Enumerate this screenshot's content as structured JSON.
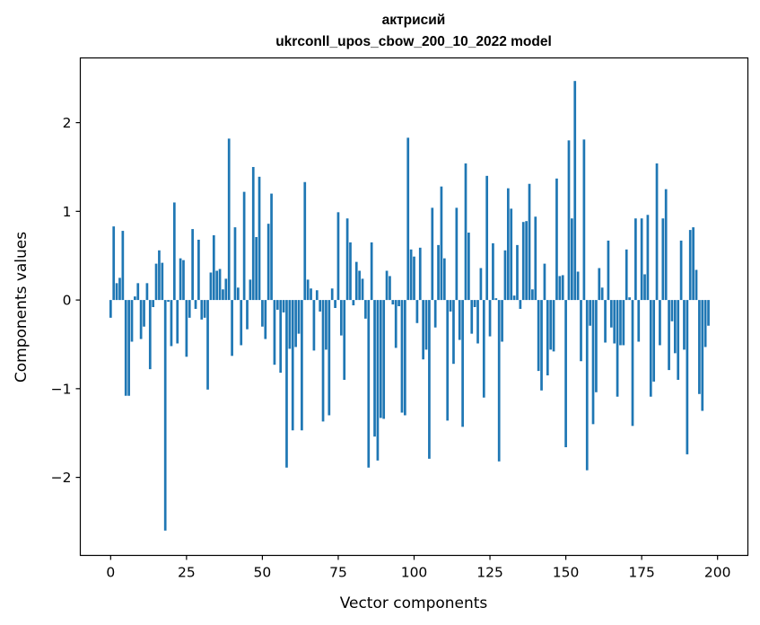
{
  "chart_data": {
    "type": "bar",
    "title_line1": "актрисий",
    "title_line2": "ukrconll_upos_cbow_200_10_2022 model",
    "xlabel": "Vector components",
    "ylabel": "Components values",
    "xlim": [
      -10,
      210
    ],
    "ylim": [
      -2.88,
      2.73
    ],
    "xticks": [
      0,
      25,
      50,
      75,
      100,
      125,
      150,
      175,
      200
    ],
    "xtick_labels": [
      "0",
      "25",
      "50",
      "75",
      "100",
      "125",
      "150",
      "175",
      "200"
    ],
    "yticks": [
      -2,
      -1,
      0,
      1,
      2
    ],
    "ytick_labels": [
      "−2",
      "−1",
      "0",
      "1",
      "2"
    ],
    "bar_color": "#1f77b4",
    "x_start": 0,
    "values": [
      -0.2,
      0.83,
      0.19,
      0.25,
      0.78,
      -1.08,
      -1.08,
      -0.47,
      0.04,
      0.19,
      -0.44,
      -0.3,
      0.19,
      -0.78,
      -0.08,
      0.41,
      0.56,
      0.42,
      -2.6,
      -0.02,
      -0.52,
      1.1,
      -0.49,
      0.47,
      0.45,
      -0.64,
      -0.2,
      0.8,
      -0.1,
      0.68,
      -0.22,
      -0.2,
      -1.01,
      0.31,
      0.73,
      0.33,
      0.35,
      0.12,
      0.24,
      1.82,
      -0.63,
      0.82,
      0.14,
      -0.51,
      1.22,
      -0.33,
      0.23,
      1.5,
      0.71,
      1.39,
      -0.3,
      -0.44,
      0.86,
      1.2,
      -0.73,
      -0.11,
      -0.82,
      -0.14,
      -1.89,
      -0.55,
      -1.47,
      -0.53,
      -0.38,
      -1.47,
      1.33,
      0.23,
      0.13,
      -0.57,
      0.11,
      -0.13,
      -1.37,
      -0.56,
      -1.3,
      0.13,
      -0.09,
      0.99,
      -0.4,
      -0.9,
      0.92,
      0.65,
      -0.06,
      0.43,
      0.33,
      0.24,
      -0.21,
      -1.89,
      0.65,
      -1.54,
      -1.81,
      -1.33,
      -1.34,
      0.33,
      0.27,
      -0.05,
      -0.54,
      -0.07,
      -1.27,
      -1.3,
      1.83,
      0.57,
      0.49,
      -0.26,
      0.59,
      -0.67,
      -0.56,
      -1.79,
      1.04,
      -0.31,
      0.62,
      1.28,
      0.47,
      -1.36,
      -0.13,
      -0.72,
      1.04,
      -0.45,
      -1.43,
      1.54,
      0.76,
      -0.38,
      -0.08,
      -0.49,
      0.36,
      -1.1,
      1.4,
      -0.41,
      0.64,
      0.02,
      -1.82,
      -0.47,
      0.56,
      1.26,
      1.03,
      0.05,
      0.62,
      -0.1,
      0.88,
      0.89,
      1.31,
      0.12,
      0.94,
      -0.8,
      -1.02,
      0.41,
      -0.85,
      -0.56,
      -0.58,
      1.37,
      0.27,
      0.28,
      -1.66,
      1.8,
      0.92,
      2.47,
      0.32,
      -0.69,
      1.81,
      -1.92,
      -0.29,
      -1.4,
      -1.04,
      0.36,
      0.14,
      -0.48,
      0.67,
      -0.31,
      -0.49,
      -1.09,
      -0.51,
      -0.51,
      0.57,
      0.03,
      -1.42,
      0.92,
      -0.47,
      0.92,
      0.29,
      0.96,
      -1.09,
      -0.92,
      1.54,
      -0.51,
      0.92,
      1.25,
      -0.79,
      -0.24,
      -0.6,
      -0.9,
      0.67,
      -0.56,
      -1.74,
      0.79,
      0.82,
      0.34,
      -1.06,
      -1.25,
      -0.53,
      -0.29
    ]
  }
}
